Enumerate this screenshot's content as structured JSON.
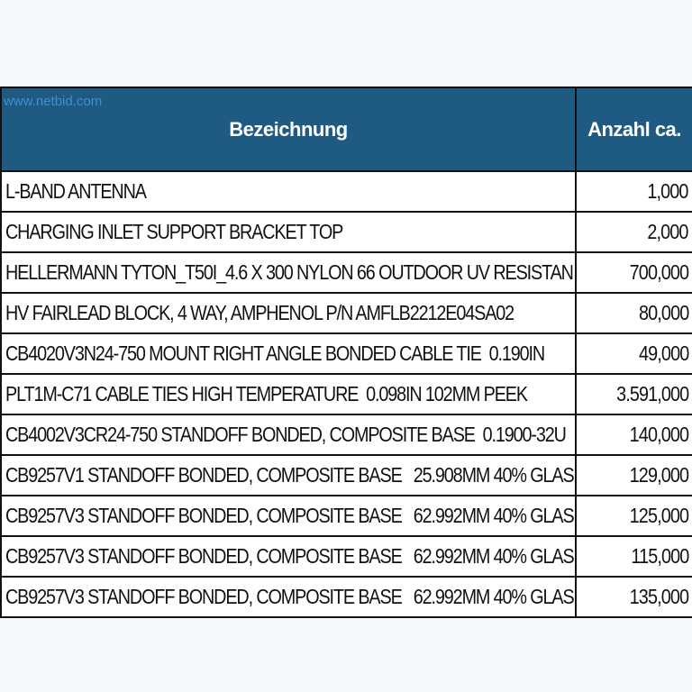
{
  "watermark": "www.netbid.com",
  "table": {
    "headers": {
      "description": "Bezeichnung",
      "quantity": "Anzahl ca."
    },
    "rows": [
      {
        "description": "L-BAND ANTENNA",
        "quantity": "1,000"
      },
      {
        "description": "CHARGING INLET SUPPORT BRACKET TOP",
        "quantity": "2,000"
      },
      {
        "description": "HELLERMANN TYTON_T50I_4.6 X 300 NYLON 66 OUTDOOR UV RESISTAN",
        "quantity": "700,000"
      },
      {
        "description": "HV FAIRLEAD BLOCK, 4 WAY, AMPHENOL P/N AMFLB2212E04SA02",
        "quantity": "80,000"
      },
      {
        "description": "CB4020V3N24-750 MOUNT RIGHT ANGLE BONDED CABLE TIE  0.190IN",
        "quantity": "49,000"
      },
      {
        "description": "PLT1M-C71 CABLE TIES HIGH TEMPERATURE  0.098IN 102MM PEEK",
        "quantity": "3.591,000"
      },
      {
        "description": "CB4002V3CR24-750 STANDOFF BONDED, COMPOSITE BASE  0.1900-32U",
        "quantity": "140,000"
      },
      {
        "description": "CB9257V1 STANDOFF BONDED, COMPOSITE BASE   25.908MM 40% GLAS",
        "quantity": "129,000"
      },
      {
        "description": "CB9257V3 STANDOFF BONDED, COMPOSITE BASE   62.992MM 40% GLAS",
        "quantity": "125,000"
      },
      {
        "description": "CB9257V3 STANDOFF BONDED, COMPOSITE BASE   62.992MM 40% GLAS",
        "quantity": "115,000"
      },
      {
        "description": "CB9257V3 STANDOFF BONDED, COMPOSITE BASE   62.992MM 40% GLAS",
        "quantity": "135,000"
      }
    ]
  },
  "colors": {
    "header_background": "#1f5a82",
    "header_text": "#ffffff",
    "watermark": "#3b8fd6",
    "page_background": "#f4f7fb"
  }
}
